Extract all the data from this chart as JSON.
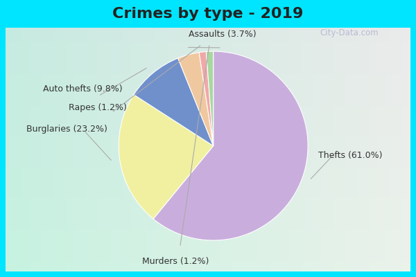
{
  "title": "Crimes by type - 2019",
  "labels": [
    "Thefts",
    "Burglaries",
    "Auto thefts",
    "Assaults",
    "Rapes",
    "Murders"
  ],
  "values": [
    61.0,
    23.2,
    9.8,
    3.7,
    1.2,
    1.2
  ],
  "colors": [
    "#c9aedd",
    "#f0f0a0",
    "#7090cc",
    "#f0c8a0",
    "#f0a8a8",
    "#a8d8a0"
  ],
  "border_color": "#00e5ff",
  "bg_color_tl": "#cce8e0",
  "bg_color_br": "#e8f0e8",
  "title_fontsize": 16,
  "label_fontsize": 9,
  "startangle": 90
}
